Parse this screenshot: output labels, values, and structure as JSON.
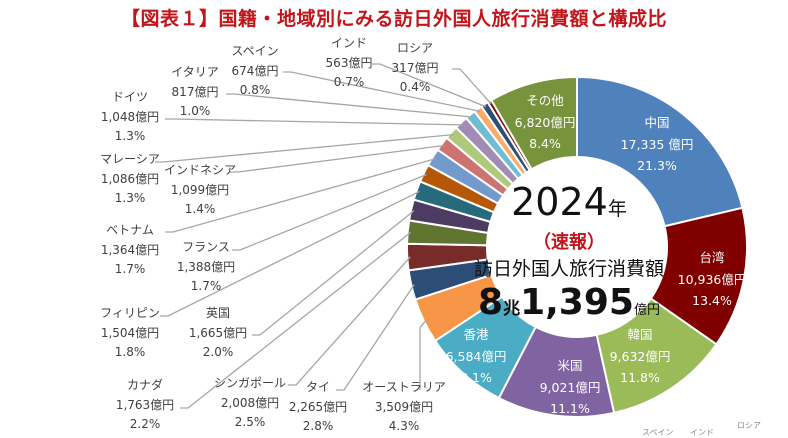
{
  "title": "【図表１】国籍・地域別にみる訪日外国人旅行消費額と構成比",
  "center": {
    "year": "2024",
    "year_suffix": "年",
    "note": "（速報）",
    "label": "訪日外国人旅行消費額",
    "total_a": "8",
    "total_unit_a": "兆",
    "total_b": "1,395",
    "total_unit_b": "億円"
  },
  "faint_labels": [
    "スペイン",
    "インド",
    "ロシア"
  ],
  "chart_data": {
    "type": "pie",
    "donut": true,
    "unit": "億円",
    "total": "8兆1,395億円",
    "slices": [
      {
        "label": "中国",
        "value": 17335,
        "value_text": "17,335 億円",
        "percent": 21.3,
        "percent_text": "21.3%",
        "color": "#4f81bd"
      },
      {
        "label": "台湾",
        "value": 10936,
        "value_text": "10,936億円",
        "percent": 13.4,
        "percent_text": "13.4%",
        "color": "#800000"
      },
      {
        "label": "韓国",
        "value": 9632,
        "value_text": "9,632億円",
        "percent": 11.8,
        "percent_text": "11.8%",
        "color": "#9bbb59"
      },
      {
        "label": "米国",
        "value": 9021,
        "value_text": "9,021億円",
        "percent": 11.1,
        "percent_text": "11.1%",
        "color": "#8064a2"
      },
      {
        "label": "香港",
        "value": 6584,
        "value_text": "6,584億円",
        "percent": 8.1,
        "percent_text": "8.1%",
        "color": "#4bacc6"
      },
      {
        "label": "オーストラリア",
        "value": 3509,
        "value_text": "3,509億円",
        "percent": 4.3,
        "percent_text": "4.3%",
        "color": "#f79646"
      },
      {
        "label": "タイ",
        "value": 2265,
        "value_text": "2,265億円",
        "percent": 2.8,
        "percent_text": "2.8%",
        "color": "#2c4d75"
      },
      {
        "label": "シンガポール",
        "value": 2008,
        "value_text": "2,008億円",
        "percent": 2.5,
        "percent_text": "2.5%",
        "color": "#772c2a"
      },
      {
        "label": "カナダ",
        "value": 1763,
        "value_text": "1,763億円",
        "percent": 2.2,
        "percent_text": "2.2%",
        "color": "#5f7530"
      },
      {
        "label": "英国",
        "value": 1665,
        "value_text": "1,665億円",
        "percent": 2.0,
        "percent_text": "2.0%",
        "color": "#4d3b62"
      },
      {
        "label": "フィリピン",
        "value": 1504,
        "value_text": "1,504億円",
        "percent": 1.8,
        "percent_text": "1.8%",
        "color": "#276a7c"
      },
      {
        "label": "フランス",
        "value": 1388,
        "value_text": "1,388億円",
        "percent": 1.7,
        "percent_text": "1.7%",
        "color": "#b65708"
      },
      {
        "label": "ベトナム",
        "value": 1364,
        "value_text": "1,364億円",
        "percent": 1.7,
        "percent_text": "1.7%",
        "color": "#729aca"
      },
      {
        "label": "インドネシア",
        "value": 1099,
        "value_text": "1,099億円",
        "percent": 1.4,
        "percent_text": "1.4%",
        "color": "#cd7371"
      },
      {
        "label": "マレーシア",
        "value": 1086,
        "value_text": "1,086億円",
        "percent": 1.3,
        "percent_text": "1.3%",
        "color": "#afc97a"
      },
      {
        "label": "ドイツ",
        "value": 1048,
        "value_text": "1,048億円",
        "percent": 1.3,
        "percent_text": "1.3%",
        "color": "#a18cb5"
      },
      {
        "label": "イタリア",
        "value": 817,
        "value_text": "817億円",
        "percent": 1.0,
        "percent_text": "1.0%",
        "color": "#6fbdd3"
      },
      {
        "label": "スペイン",
        "value": 674,
        "value_text": "674億円",
        "percent": 0.8,
        "percent_text": "0.8%",
        "color": "#f9ab6b"
      },
      {
        "label": "インド",
        "value": 563,
        "value_text": "563億円",
        "percent": 0.7,
        "percent_text": "0.7%",
        "color": "#2c4d75"
      },
      {
        "label": "ロシア",
        "value": 317,
        "value_text": "317億円",
        "percent": 0.4,
        "percent_text": "0.4%",
        "color": "#7f1010"
      },
      {
        "label": "その他",
        "value": 6820,
        "value_text": "6,820億円",
        "percent": 8.4,
        "percent_text": "8.4%",
        "color": "#77933c"
      }
    ]
  }
}
